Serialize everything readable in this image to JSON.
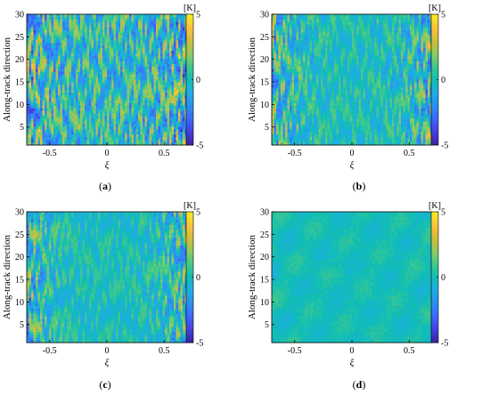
{
  "colors": {
    "colormap": [
      "#3e26a8",
      "#4544e5",
      "#3d6afd",
      "#2b91ef",
      "#1fade3",
      "#0fbdb6",
      "#41c88b",
      "#8dcb62",
      "#d0bb3c",
      "#fcc13a",
      "#f7e726"
    ]
  },
  "chart_data": [
    {
      "type": "heatmap",
      "panel": "a",
      "caption_letter": "a",
      "xlabel": "ξ",
      "ylabel": "Along-track direction",
      "xlim": [
        -0.7,
        0.7
      ],
      "ylim": [
        1,
        30
      ],
      "xticks": [
        "-0.5",
        "0",
        "0.5"
      ],
      "yticks": [
        "5",
        "10",
        "15",
        "20",
        "25",
        "30"
      ],
      "colorbar": {
        "unit": "[K]",
        "ticks": [
          "5",
          "0",
          "-5"
        ],
        "range": [
          -5,
          5
        ]
      },
      "pattern": {
        "amplitude_center": 2.6,
        "amplitude_edge": 4.5,
        "stripes": "strong vertical striping over whole swath"
      }
    },
    {
      "type": "heatmap",
      "panel": "b",
      "caption_letter": "b",
      "xlabel": "ξ",
      "ylabel": "Along-track direction",
      "xlim": [
        -0.7,
        0.7
      ],
      "ylim": [
        1,
        30
      ],
      "xticks": [
        "-0.5",
        "0",
        "0.5"
      ],
      "yticks": [
        "5",
        "10",
        "15",
        "20",
        "25",
        "30"
      ],
      "colorbar": {
        "unit": "[K]",
        "ticks": [
          "5",
          "0",
          "-5"
        ],
        "range": [
          -5,
          5
        ]
      },
      "pattern": {
        "amplitude_center": 1.3,
        "amplitude_edge": 3.8,
        "stripes": "moderate striping, stronger at swath edges"
      }
    },
    {
      "type": "heatmap",
      "panel": "c",
      "caption_letter": "c",
      "xlabel": "ξ",
      "ylabel": "Along-track direction",
      "xlim": [
        -0.7,
        0.7
      ],
      "ylim": [
        1,
        30
      ],
      "xticks": [
        "-0.5",
        "0",
        "0.5"
      ],
      "yticks": [
        "5",
        "10",
        "15",
        "20",
        "25",
        "30"
      ],
      "colorbar": {
        "unit": "[K]",
        "ticks": [
          "5",
          "0",
          "-5"
        ],
        "range": [
          -5,
          5
        ]
      },
      "pattern": {
        "amplitude_center": 1.1,
        "amplitude_edge": 3.6,
        "stripes": "weaker striping, strong at swath edges"
      }
    },
    {
      "type": "heatmap",
      "panel": "d",
      "caption_letter": "d",
      "xlabel": "ξ",
      "ylabel": "Along-track direction",
      "xlim": [
        -0.7,
        0.7
      ],
      "ylim": [
        1,
        30
      ],
      "xticks": [
        "-0.5",
        "0",
        "0.5"
      ],
      "yticks": [
        "5",
        "10",
        "15",
        "20",
        "25",
        "30"
      ],
      "colorbar": {
        "unit": "[K]",
        "ticks": [
          "5",
          "0",
          "-5"
        ],
        "range": [
          -5,
          5
        ]
      },
      "pattern": {
        "amplitude_center": 0.5,
        "amplitude_edge": 0.8,
        "stripes": "smooth, nearly uniform field"
      }
    }
  ]
}
